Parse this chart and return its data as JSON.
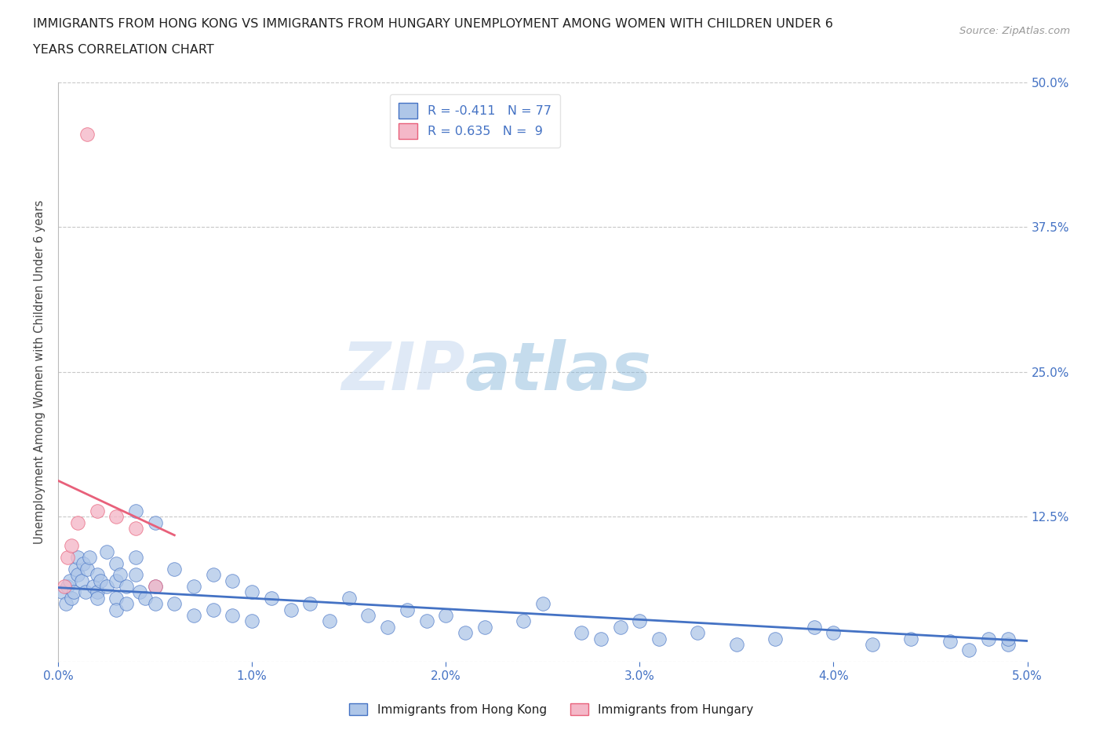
{
  "title_line1": "IMMIGRANTS FROM HONG KONG VS IMMIGRANTS FROM HUNGARY UNEMPLOYMENT AMONG WOMEN WITH CHILDREN UNDER 6",
  "title_line2": "YEARS CORRELATION CHART",
  "source": "Source: ZipAtlas.com",
  "ylabel": "Unemployment Among Women with Children Under 6 years",
  "xlim": [
    0.0,
    0.05
  ],
  "ylim": [
    0.0,
    0.5
  ],
  "ytick_vals": [
    0.0,
    0.125,
    0.25,
    0.375,
    0.5
  ],
  "ytick_labels": [
    "",
    "12.5%",
    "25.0%",
    "37.5%",
    "50.0%"
  ],
  "xtick_vals": [
    0.0,
    0.01,
    0.02,
    0.03,
    0.04,
    0.05
  ],
  "xtick_labels": [
    "0.0%",
    "1.0%",
    "2.0%",
    "3.0%",
    "4.0%",
    "5.0%"
  ],
  "hk_color": "#aec6e8",
  "hu_color": "#f4b8c8",
  "hk_line_color": "#4472c4",
  "hu_line_color": "#e8607a",
  "hk_R": -0.411,
  "hk_N": 77,
  "hu_R": 0.635,
  "hu_N": 9,
  "watermark_zip": "ZIP",
  "watermark_atlas": "atlas",
  "background_color": "#ffffff",
  "legend_color": "#4472c4",
  "hk_legend": "Immigrants from Hong Kong",
  "hu_legend": "Immigrants from Hungary",
  "hk_x": [
    0.0002,
    0.0004,
    0.0005,
    0.0006,
    0.0007,
    0.0008,
    0.0009,
    0.001,
    0.001,
    0.0012,
    0.0013,
    0.0014,
    0.0015,
    0.0016,
    0.0018,
    0.002,
    0.002,
    0.002,
    0.0022,
    0.0025,
    0.0025,
    0.003,
    0.003,
    0.003,
    0.003,
    0.0032,
    0.0035,
    0.0035,
    0.004,
    0.004,
    0.004,
    0.0042,
    0.0045,
    0.005,
    0.005,
    0.005,
    0.006,
    0.006,
    0.007,
    0.007,
    0.008,
    0.008,
    0.009,
    0.009,
    0.01,
    0.01,
    0.011,
    0.012,
    0.013,
    0.014,
    0.015,
    0.016,
    0.017,
    0.018,
    0.019,
    0.02,
    0.021,
    0.022,
    0.024,
    0.025,
    0.027,
    0.028,
    0.029,
    0.03,
    0.031,
    0.033,
    0.035,
    0.037,
    0.039,
    0.04,
    0.042,
    0.044,
    0.046,
    0.047,
    0.048,
    0.049,
    0.049
  ],
  "hk_y": [
    0.06,
    0.05,
    0.065,
    0.07,
    0.055,
    0.06,
    0.08,
    0.075,
    0.09,
    0.07,
    0.085,
    0.06,
    0.08,
    0.09,
    0.065,
    0.075,
    0.06,
    0.055,
    0.07,
    0.095,
    0.065,
    0.085,
    0.07,
    0.055,
    0.045,
    0.075,
    0.065,
    0.05,
    0.13,
    0.09,
    0.075,
    0.06,
    0.055,
    0.12,
    0.065,
    0.05,
    0.08,
    0.05,
    0.065,
    0.04,
    0.075,
    0.045,
    0.07,
    0.04,
    0.06,
    0.035,
    0.055,
    0.045,
    0.05,
    0.035,
    0.055,
    0.04,
    0.03,
    0.045,
    0.035,
    0.04,
    0.025,
    0.03,
    0.035,
    0.05,
    0.025,
    0.02,
    0.03,
    0.035,
    0.02,
    0.025,
    0.015,
    0.02,
    0.03,
    0.025,
    0.015,
    0.02,
    0.018,
    0.01,
    0.02,
    0.015,
    0.02
  ],
  "hu_x": [
    0.0003,
    0.0005,
    0.0007,
    0.001,
    0.0015,
    0.002,
    0.003,
    0.004,
    0.005
  ],
  "hu_y": [
    0.065,
    0.09,
    0.1,
    0.12,
    0.455,
    0.13,
    0.125,
    0.115,
    0.065
  ],
  "hu_line_x0": -0.001,
  "hu_line_x1": 0.006,
  "hk_line_y0": 0.064,
  "hk_line_y1": 0.018
}
